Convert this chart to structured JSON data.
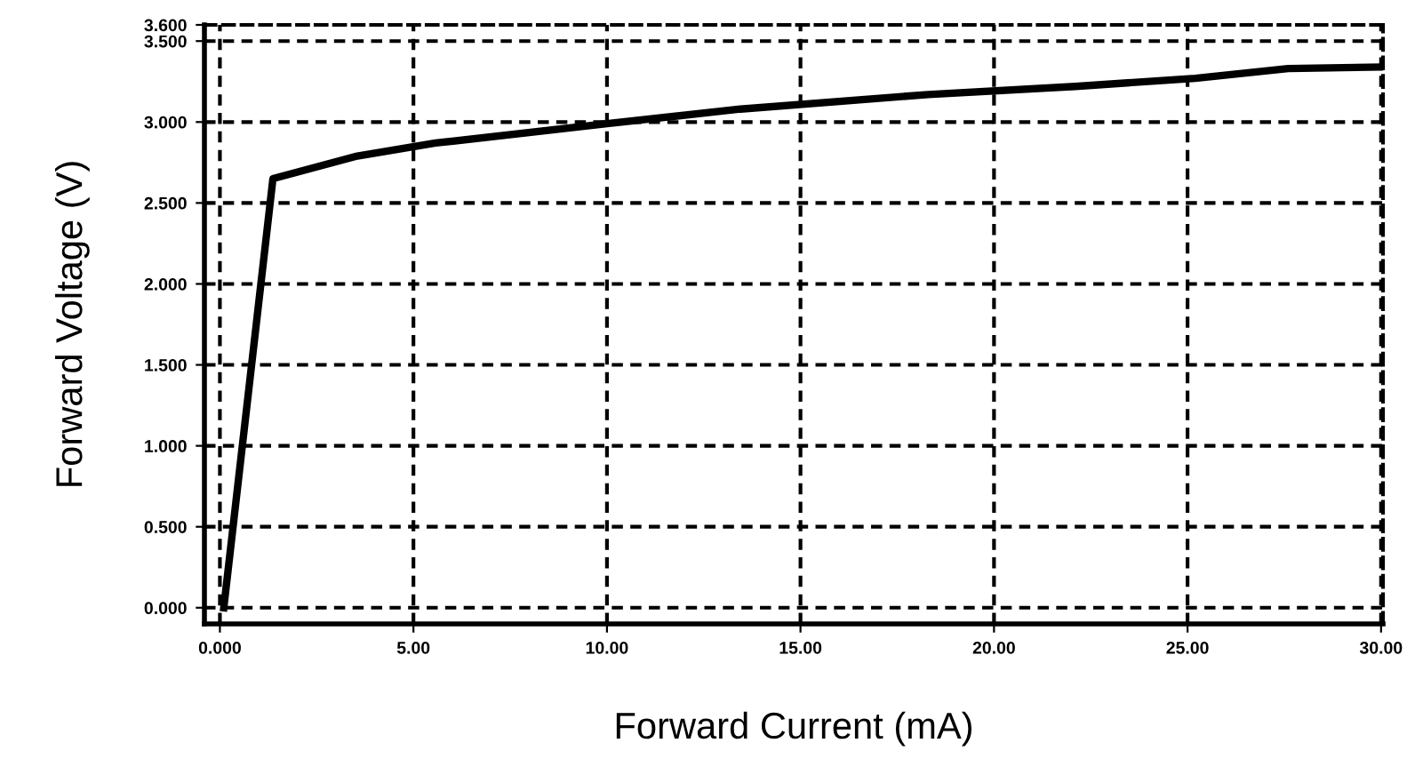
{
  "chart_data": {
    "type": "line",
    "xlabel": "Forward Current (mA)",
    "ylabel": "Forward Voltage (V)",
    "x": [
      0.1,
      1.37,
      3.55,
      5.57,
      10.0,
      13.45,
      18.3,
      22.1,
      25.2,
      27.6,
      30.0
    ],
    "series": [
      {
        "color": "#000000",
        "values": [
          0,
          2.65,
          2.79,
          2.87,
          2.99,
          3.08,
          3.17,
          3.22,
          3.27,
          3.33,
          3.34
        ]
      }
    ],
    "xlim": [
      -0.4,
      30.05
    ],
    "ylim": [
      -0.1,
      3.6
    ],
    "xticks": [
      {
        "value": 0,
        "label": "0.000"
      },
      {
        "value": 5,
        "label": "5.00"
      },
      {
        "value": 10,
        "label": "10.00"
      },
      {
        "value": 15,
        "label": "15.00"
      },
      {
        "value": 20,
        "label": "20.00"
      },
      {
        "value": 25,
        "label": "25.00"
      },
      {
        "value": 30,
        "label": "30.00"
      }
    ],
    "yticks": [
      {
        "value": 0,
        "label": "0.000"
      },
      {
        "value": 0.5,
        "label": "0.500"
      },
      {
        "value": 1,
        "label": "1.000"
      },
      {
        "value": 1.5,
        "label": "1.500"
      },
      {
        "value": 2,
        "label": "2.000"
      },
      {
        "value": 2.5,
        "label": "2.500"
      },
      {
        "value": 3,
        "label": "3.000"
      },
      {
        "value": 3.5,
        "label": "3.500"
      },
      {
        "value": 3.6,
        "label": "3.600"
      }
    ],
    "grid": true,
    "marker": "none",
    "line_style": "solid"
  }
}
